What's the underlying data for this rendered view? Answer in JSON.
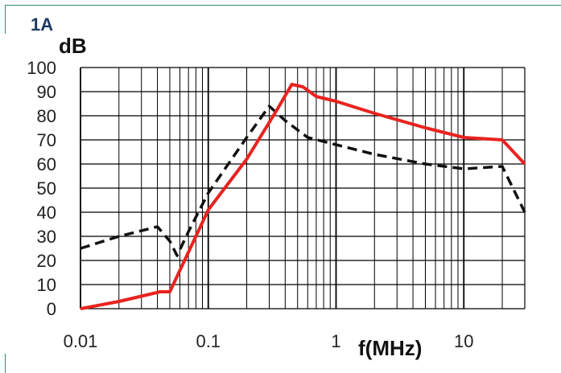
{
  "panel_label": "1A",
  "chart_data": {
    "type": "line",
    "title": "",
    "ylabel": "dB",
    "xlabel": "f(MHz)",
    "xscale": "log",
    "xlim": [
      0.01,
      30
    ],
    "ylim": [
      0,
      100
    ],
    "x_ticks": [
      "0.01",
      "0.1",
      "1",
      "10"
    ],
    "y_ticks": [
      "0",
      "10",
      "20",
      "30",
      "40",
      "50",
      "60",
      "70",
      "80",
      "90",
      "100"
    ],
    "grid": true,
    "series": [
      {
        "color": "#e8231f",
        "style": "solid",
        "x": [
          0.01,
          0.02,
          0.042,
          0.05,
          0.1,
          0.2,
          0.35,
          0.45,
          0.55,
          0.7,
          1,
          2,
          5,
          10,
          20,
          30
        ],
        "y": [
          0,
          3,
          7,
          7,
          41,
          62,
          83,
          93,
          92,
          88,
          86,
          81,
          75,
          71,
          70,
          60
        ]
      },
      {
        "color": "#111111",
        "style": "dashed",
        "x": [
          0.01,
          0.02,
          0.04,
          0.05,
          0.057,
          0.07,
          0.1,
          0.2,
          0.3,
          0.4,
          0.6,
          1,
          2,
          5,
          10,
          20,
          30
        ],
        "y": [
          25,
          30,
          34,
          28,
          22,
          32,
          48,
          71,
          84,
          78,
          71,
          68,
          64,
          60,
          58,
          59,
          40
        ]
      }
    ]
  }
}
